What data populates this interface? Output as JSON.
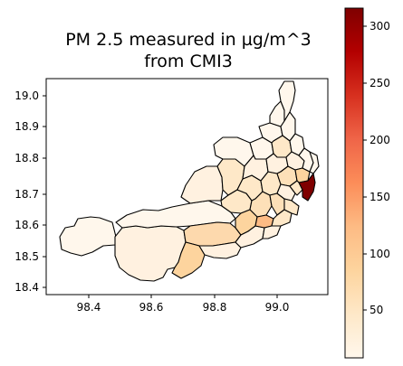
{
  "title_line1": "PM 2.5 measured in µg/m^3",
  "title_line2": "from CMI3",
  "x_axis": {
    "ticks": [
      "98.4",
      "98.6",
      "98.8",
      "99.0"
    ],
    "range": [
      98.27,
      99.14
    ]
  },
  "y_axis": {
    "ticks": [
      "18.4",
      "18.5",
      "18.6",
      "18.7",
      "18.8",
      "18.9",
      "19.0"
    ],
    "range": [
      18.37,
      19.07
    ]
  },
  "colorbar": {
    "cmap": "OrRd",
    "range": [
      5,
      313
    ],
    "ticks": [
      "50",
      "100",
      "150",
      "200",
      "250",
      "300"
    ]
  },
  "legend_colors": {
    "low": "#fff7ec",
    "mid": "#fdd49e",
    "high": "#7f0000",
    "outline": "#000000"
  }
}
